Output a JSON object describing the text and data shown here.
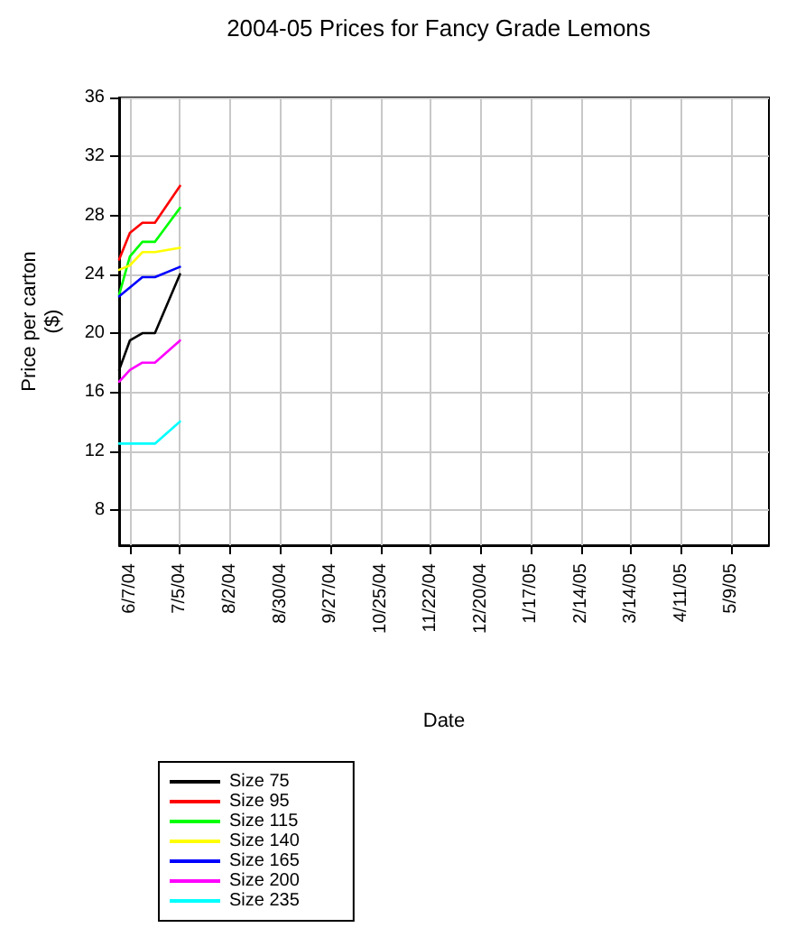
{
  "chart_data": {
    "type": "line",
    "title": "2004-05 Prices for Fancy Grade Lemons",
    "xlabel": "Date",
    "ylabel": "Price per carton\n($)",
    "x": [
      "2004-06-01",
      "2004-06-07",
      "2004-06-14",
      "2004-06-21",
      "2004-07-05"
    ],
    "series": [
      {
        "name": "Size 75",
        "color": "#000000",
        "values": [
          17.5,
          19.5,
          20,
          20,
          24
        ]
      },
      {
        "name": "Size 95",
        "color": "#ff0000",
        "values": [
          25,
          26.8,
          27.5,
          27.5,
          30
        ]
      },
      {
        "name": "Size 115",
        "color": "#00ff00",
        "values": [
          22.6,
          25.2,
          26.2,
          26.2,
          28.5
        ]
      },
      {
        "name": "Size 140",
        "color": "#ffff00",
        "values": [
          24.3,
          24.6,
          25.5,
          25.5,
          25.8
        ]
      },
      {
        "name": "Size 165",
        "color": "#0000ff",
        "values": [
          22.5,
          23.1,
          23.8,
          23.8,
          24.5
        ]
      },
      {
        "name": "Size 200",
        "color": "#ff00ff",
        "values": [
          16.7,
          17.5,
          18,
          18,
          19.5
        ]
      },
      {
        "name": "Size 235",
        "color": "#00ffff",
        "values": [
          12.5,
          12.5,
          12.5,
          12.5,
          14
        ]
      }
    ],
    "xlim": [
      "2004-06-01",
      "2005-05-30"
    ],
    "xticks": [
      {
        "value": "2004-06-07",
        "label": "6/7/04"
      },
      {
        "value": "2004-07-05",
        "label": "7/5/04"
      },
      {
        "value": "2004-08-02",
        "label": "8/2/04"
      },
      {
        "value": "2004-08-30",
        "label": "8/30/04"
      },
      {
        "value": "2004-09-27",
        "label": "9/27/04"
      },
      {
        "value": "2004-10-25",
        "label": "10/25/04"
      },
      {
        "value": "2004-11-22",
        "label": "11/22/04"
      },
      {
        "value": "2004-12-20",
        "label": "12/20/04"
      },
      {
        "value": "2005-01-17",
        "label": "1/17/05"
      },
      {
        "value": "2005-02-14",
        "label": "2/14/05"
      },
      {
        "value": "2005-03-14",
        "label": "3/14/05"
      },
      {
        "value": "2005-04-11",
        "label": "4/11/05"
      },
      {
        "value": "2005-05-09",
        "label": "5/9/05"
      }
    ],
    "ylim": [
      5.6,
      36
    ],
    "yticks": [
      8,
      12,
      16,
      20,
      24,
      28,
      32,
      36
    ],
    "grid": true,
    "legend": "bottom left",
    "marker": "none",
    "line_style": "solid"
  }
}
